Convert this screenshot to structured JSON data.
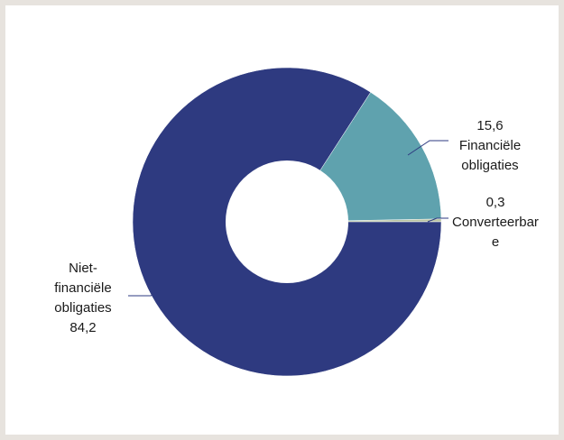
{
  "chart_data": {
    "type": "pie",
    "subtype": "donut",
    "title": "",
    "start_angle_deg": 90,
    "direction": "counterclockwise",
    "slices": [
      {
        "label_lines": [
          "Converteerbar",
          "e"
        ],
        "value": 0.3,
        "value_text": "0,3",
        "color": "#b9c3a2"
      },
      {
        "label_lines": [
          "Financiële",
          "obligaties"
        ],
        "value": 15.6,
        "value_text": "15,6",
        "color": "#5fa2ae"
      },
      {
        "label_lines": [
          "Niet-",
          "financiële",
          "obligaties"
        ],
        "value": 84.2,
        "value_text": "84,2",
        "color": "#2e3a80"
      }
    ]
  },
  "colors": {
    "page_background": "#e7e3de",
    "card_background": "#ffffff",
    "leader_line": "#2e3a80"
  }
}
